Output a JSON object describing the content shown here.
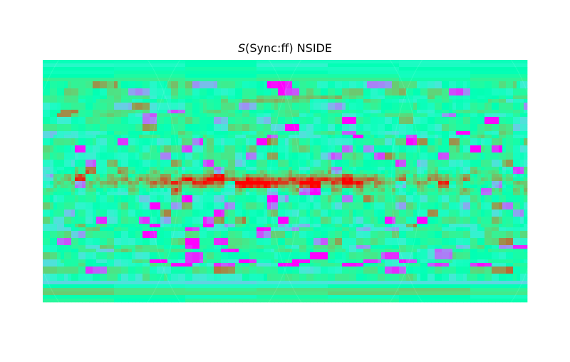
{
  "chart_data": {
    "type": "heatmap",
    "title_symbol": "S",
    "title_rest": "(Sync:ff) NSIDE",
    "projection": "cartesian-healpix-map",
    "colormap": "rainbow",
    "colorbar": false,
    "grid": false,
    "axes_visible": false,
    "healpix_base_faces_across": 4,
    "notable_features": [
      "high-value band along the galactic plane (red)",
      "scattered low-value pixels (blue/violet) across the sky"
    ]
  }
}
